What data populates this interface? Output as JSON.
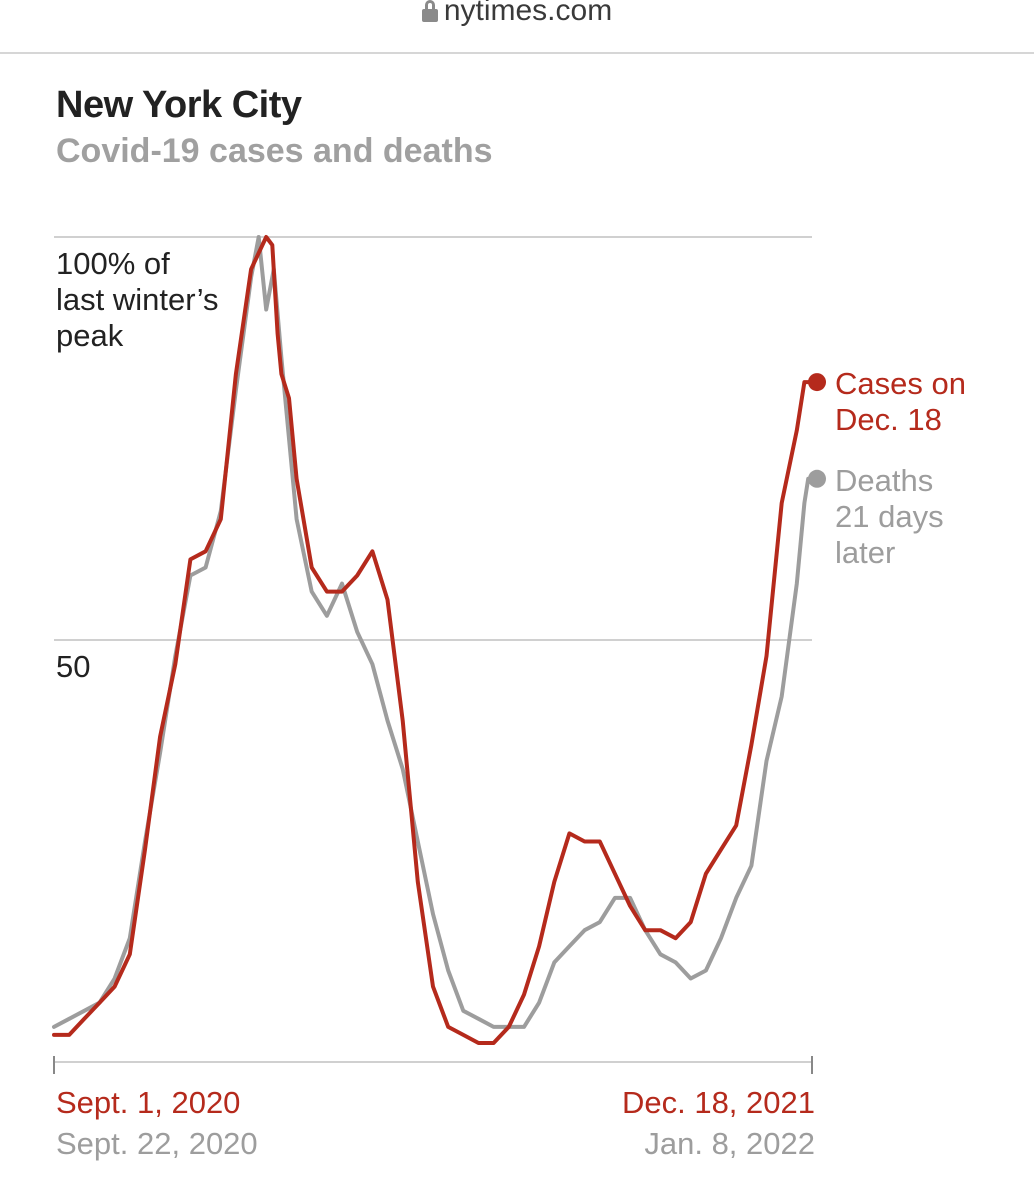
{
  "browser": {
    "url": "nytimes.com"
  },
  "chart_data": {
    "type": "line",
    "title": "New York City",
    "subtitle": "Covid-19 cases and deaths",
    "y_unit": "% of last winter's peak",
    "ylim": [
      0,
      100
    ],
    "yticks": [
      {
        "value": 100,
        "lines": [
          "100% of",
          "last winter’s",
          "peak"
        ]
      },
      {
        "value": 50,
        "lines": [
          "50"
        ]
      }
    ],
    "x_index_range": [
      0,
      100
    ],
    "x_start_labels": {
      "cases": "Sept. 1, 2020",
      "deaths": "Sept. 22, 2020"
    },
    "x_end_labels": {
      "cases": "Dec. 18, 2021",
      "deaths": "Jan. 8, 2022"
    },
    "colors": {
      "cases": "#b52a1c",
      "deaths": "#9d9d9d",
      "grid": "#d0d0d0",
      "axis": "#888888",
      "ticklabel": "#222222"
    },
    "series": [
      {
        "name": "Deaths",
        "color": "#9d9d9d",
        "label_lines": [
          "Deaths",
          "21 days",
          "later"
        ],
        "x": [
          0,
          2,
          4,
          6,
          8,
          10,
          12,
          14,
          16,
          18,
          20,
          22,
          24,
          26,
          27,
          28,
          29,
          30,
          32,
          34,
          36,
          38,
          40,
          42,
          44,
          46,
          48,
          50,
          52,
          54,
          56,
          58,
          60,
          62,
          64,
          66,
          68,
          70,
          72,
          74,
          76,
          78,
          80,
          82,
          84,
          86,
          88,
          90,
          92,
          94,
          96,
          98,
          99,
          99.5,
          100
        ],
        "values": [
          2,
          3,
          4,
          5,
          8,
          13,
          25,
          36,
          48,
          58,
          59,
          66,
          81,
          95,
          100,
          91,
          96,
          85,
          65,
          56,
          53,
          57,
          51,
          47,
          40,
          34,
          25,
          16,
          9,
          4,
          3,
          2,
          2,
          2,
          5,
          10,
          12,
          14,
          15,
          18,
          18,
          14,
          11,
          10,
          8,
          9,
          13,
          18,
          22,
          35,
          43,
          57,
          67,
          70,
          70
        ]
      },
      {
        "name": "Cases",
        "color": "#b52a1c",
        "label_lines": [
          "Cases on",
          "Dec. 18"
        ],
        "x": [
          0,
          2,
          4,
          6,
          8,
          10,
          12,
          14,
          16,
          18,
          20,
          22,
          24,
          26,
          28,
          28.8,
          29.5,
          30,
          31,
          32,
          34,
          36,
          38,
          40,
          42,
          44,
          46,
          48,
          50,
          52,
          54,
          56,
          58,
          60,
          62,
          64,
          66,
          68,
          70,
          72,
          74,
          76,
          78,
          80,
          82,
          84,
          86,
          88,
          90,
          92,
          94,
          96,
          98,
          99,
          99.5,
          100
        ],
        "values": [
          1,
          1,
          3,
          5,
          7,
          11,
          24,
          38,
          47,
          60,
          61,
          65,
          83,
          96,
          100,
          99,
          88,
          83,
          80,
          70,
          59,
          56,
          56,
          58,
          61,
          55,
          40,
          20,
          7,
          2,
          1,
          0,
          0,
          2,
          6,
          12,
          20,
          26,
          25,
          25,
          21,
          17,
          14,
          14,
          13,
          15,
          21,
          24,
          27,
          37,
          48,
          67,
          76,
          82,
          82,
          82
        ]
      }
    ]
  }
}
